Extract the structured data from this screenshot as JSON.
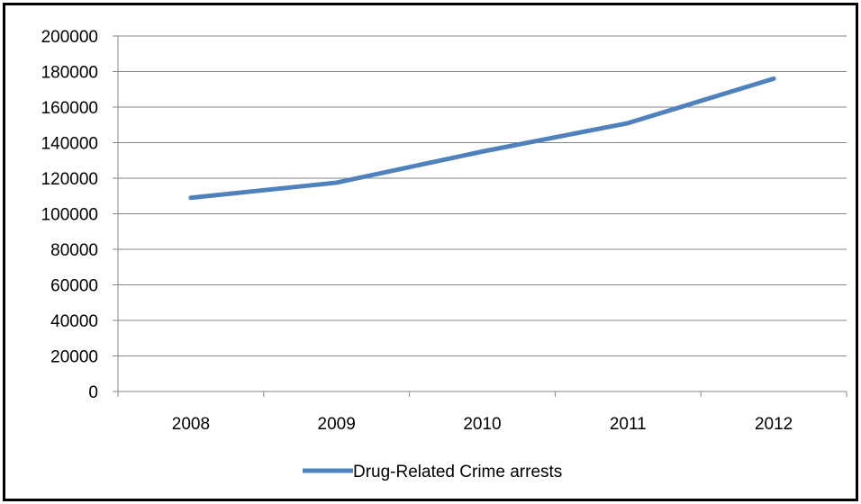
{
  "chart_data": {
    "type": "line",
    "categories": [
      "2008",
      "2009",
      "2010",
      "2011",
      "2012"
    ],
    "series": [
      {
        "name": "Drug-Related Crime arrests",
        "values": [
          109000,
          117500,
          135000,
          151000,
          176000
        ],
        "color": "#4F81BD"
      }
    ],
    "ylim": [
      0,
      200000
    ],
    "yticks": [
      0,
      20000,
      40000,
      60000,
      80000,
      100000,
      120000,
      140000,
      160000,
      180000,
      200000
    ],
    "ytick_labels": [
      "0",
      "20000",
      "40000",
      "60000",
      "80000",
      "100000",
      "120000",
      "140000",
      "160000",
      "180000",
      "200000"
    ],
    "grid": true,
    "legend_position": "bottom",
    "title": "",
    "xlabel": "",
    "ylabel": ""
  }
}
